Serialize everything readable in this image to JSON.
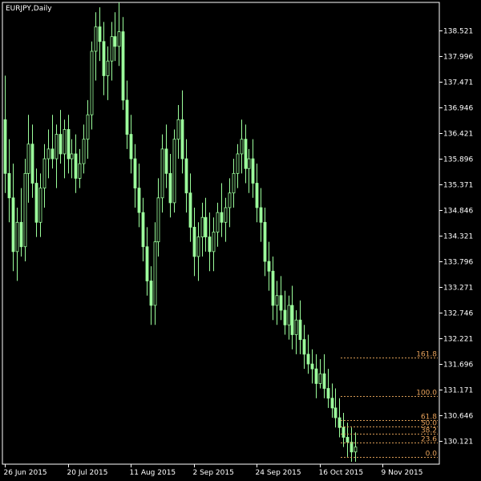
{
  "window": {
    "title": "EURJPY,Daily"
  },
  "colors": {
    "background": "#000000",
    "candle": "#9cff9c",
    "axis": "#ffffff",
    "fib": "#d79a55"
  },
  "chart_data": {
    "type": "candlestick",
    "symbol": "EURJPY",
    "timeframe": "Daily",
    "ylim": [
      129.65,
      139.1
    ],
    "y_ticks": [
      "138.521",
      "137.996",
      "137.471",
      "136.946",
      "136.421",
      "135.896",
      "135.371",
      "134.846",
      "134.321",
      "133.796",
      "133.271",
      "132.746",
      "132.221",
      "131.696",
      "131.171",
      "130.646",
      "130.121"
    ],
    "x_ticks": [
      {
        "label": "26 Jun 2015",
        "index": 0
      },
      {
        "label": "20 Jul 2015",
        "index": 16
      },
      {
        "label": "11 Aug 2015",
        "index": 32
      },
      {
        "label": "2 Sep 2015",
        "index": 48
      },
      {
        "label": "24 Sep 2015",
        "index": 64
      },
      {
        "label": "16 Oct 2015",
        "index": 80
      },
      {
        "label": "9 Nov 2015",
        "index": 96
      }
    ],
    "candles": [
      [
        136.7,
        137.6,
        135.2,
        135.6
      ],
      [
        135.6,
        136.3,
        134.6,
        135.1
      ],
      [
        135.1,
        135.8,
        133.6,
        134.0
      ],
      [
        134.0,
        134.9,
        133.4,
        134.6
      ],
      [
        134.6,
        135.3,
        133.9,
        134.1
      ],
      [
        134.1,
        135.9,
        133.8,
        135.6
      ],
      [
        135.6,
        136.8,
        135.0,
        136.2
      ],
      [
        136.2,
        136.6,
        135.1,
        135.4
      ],
      [
        135.4,
        135.7,
        134.3,
        134.6
      ],
      [
        134.6,
        135.6,
        134.3,
        135.3
      ],
      [
        135.3,
        136.2,
        134.9,
        135.9
      ],
      [
        135.9,
        136.5,
        135.5,
        136.1
      ],
      [
        136.1,
        136.8,
        135.7,
        135.9
      ],
      [
        135.9,
        136.6,
        135.3,
        136.4
      ],
      [
        136.4,
        136.9,
        135.8,
        136.0
      ],
      [
        136.0,
        136.7,
        135.5,
        136.5
      ],
      [
        136.5,
        136.8,
        135.6,
        135.9
      ],
      [
        135.9,
        136.3,
        135.5,
        136.0
      ],
      [
        136.0,
        136.4,
        135.2,
        135.5
      ],
      [
        135.5,
        136.1,
        135.3,
        135.8
      ],
      [
        135.8,
        136.6,
        135.6,
        136.3
      ],
      [
        136.3,
        137.1,
        135.9,
        136.8
      ],
      [
        136.8,
        138.3,
        136.5,
        138.1
      ],
      [
        138.1,
        138.9,
        137.5,
        138.6
      ],
      [
        138.6,
        139.0,
        137.9,
        138.3
      ],
      [
        138.3,
        138.7,
        137.2,
        137.6
      ],
      [
        137.6,
        138.2,
        137.1,
        137.9
      ],
      [
        137.9,
        138.7,
        137.5,
        138.4
      ],
      [
        138.4,
        138.9,
        137.9,
        138.2
      ],
      [
        138.2,
        139.1,
        137.8,
        138.5
      ],
      [
        138.5,
        138.8,
        136.9,
        137.1
      ],
      [
        137.1,
        137.5,
        136.1,
        136.4
      ],
      [
        136.4,
        136.8,
        135.6,
        135.9
      ],
      [
        135.9,
        136.2,
        134.9,
        135.3
      ],
      [
        135.3,
        135.8,
        134.5,
        134.8
      ],
      [
        134.8,
        135.1,
        133.8,
        134.1
      ],
      [
        134.1,
        134.5,
        133.1,
        133.4
      ],
      [
        133.4,
        133.7,
        132.5,
        132.9
      ],
      [
        132.9,
        134.6,
        132.5,
        134.2
      ],
      [
        134.2,
        135.5,
        133.9,
        135.1
      ],
      [
        135.1,
        136.4,
        134.8,
        136.1
      ],
      [
        136.1,
        136.6,
        135.3,
        135.6
      ],
      [
        135.6,
        136.0,
        134.7,
        135.0
      ],
      [
        135.0,
        136.5,
        134.8,
        136.3
      ],
      [
        136.3,
        137.0,
        135.9,
        136.7
      ],
      [
        136.7,
        137.3,
        135.6,
        135.9
      ],
      [
        135.9,
        136.3,
        134.8,
        135.2
      ],
      [
        135.2,
        135.6,
        134.2,
        134.5
      ],
      [
        134.5,
        134.9,
        133.5,
        133.9
      ],
      [
        133.9,
        134.6,
        133.4,
        134.3
      ],
      [
        134.3,
        135.0,
        133.9,
        134.7
      ],
      [
        134.7,
        135.1,
        134.0,
        134.3
      ],
      [
        134.3,
        134.8,
        133.6,
        134.0
      ],
      [
        134.0,
        134.7,
        133.6,
        134.4
      ],
      [
        134.4,
        135.0,
        134.1,
        134.8
      ],
      [
        134.8,
        135.4,
        134.3,
        134.6
      ],
      [
        134.6,
        135.1,
        134.2,
        134.9
      ],
      [
        134.9,
        135.5,
        134.5,
        135.2
      ],
      [
        135.2,
        135.9,
        134.9,
        135.6
      ],
      [
        135.6,
        136.2,
        135.3,
        136.0
      ],
      [
        136.0,
        136.7,
        135.6,
        136.3
      ],
      [
        136.3,
        136.6,
        135.4,
        135.7
      ],
      [
        135.7,
        136.1,
        135.2,
        135.9
      ],
      [
        135.9,
        136.3,
        135.1,
        135.4
      ],
      [
        135.4,
        135.8,
        134.6,
        134.9
      ],
      [
        134.9,
        135.3,
        134.2,
        134.6
      ],
      [
        134.6,
        134.9,
        133.5,
        133.8
      ],
      [
        133.8,
        134.2,
        133.2,
        133.6
      ],
      [
        133.6,
        133.9,
        132.6,
        132.9
      ],
      [
        132.9,
        133.4,
        132.5,
        133.1
      ],
      [
        133.1,
        133.5,
        132.6,
        132.8
      ],
      [
        132.8,
        133.2,
        132.3,
        132.5
      ],
      [
        132.5,
        133.1,
        132.2,
        132.9
      ],
      [
        132.9,
        133.3,
        132.0,
        132.3
      ],
      [
        132.3,
        132.8,
        131.9,
        132.6
      ],
      [
        132.6,
        133.0,
        131.9,
        132.2
      ],
      [
        132.2,
        132.5,
        131.6,
        131.9
      ],
      [
        131.9,
        132.3,
        131.5,
        131.7
      ],
      [
        131.7,
        132.0,
        131.3,
        131.6
      ],
      [
        131.6,
        131.9,
        131.0,
        131.3
      ],
      [
        131.3,
        131.8,
        131.2,
        131.5
      ],
      [
        131.5,
        131.9,
        131.0,
        131.2
      ],
      [
        131.2,
        131.6,
        130.8,
        131.0
      ],
      [
        131.0,
        131.3,
        130.6,
        130.8
      ],
      [
        130.8,
        131.2,
        130.4,
        130.6
      ],
      [
        130.6,
        131.0,
        130.2,
        130.4
      ],
      [
        130.4,
        130.7,
        130.0,
        130.2
      ],
      [
        130.2,
        130.5,
        129.8,
        130.1
      ],
      [
        130.1,
        130.4,
        129.7,
        129.9
      ],
      [
        129.9,
        130.3,
        129.7,
        130.0
      ]
    ],
    "fibonacci": [
      {
        "label": "161.8",
        "price": 131.84
      },
      {
        "label": "100.0",
        "price": 131.04
      },
      {
        "label": "61.8",
        "price": 130.56
      },
      {
        "label": "50.0",
        "price": 130.42
      },
      {
        "label": "38.2",
        "price": 130.27
      },
      {
        "label": "23.6",
        "price": 130.09
      },
      {
        "label": "0.0",
        "price": 129.79
      }
    ]
  }
}
